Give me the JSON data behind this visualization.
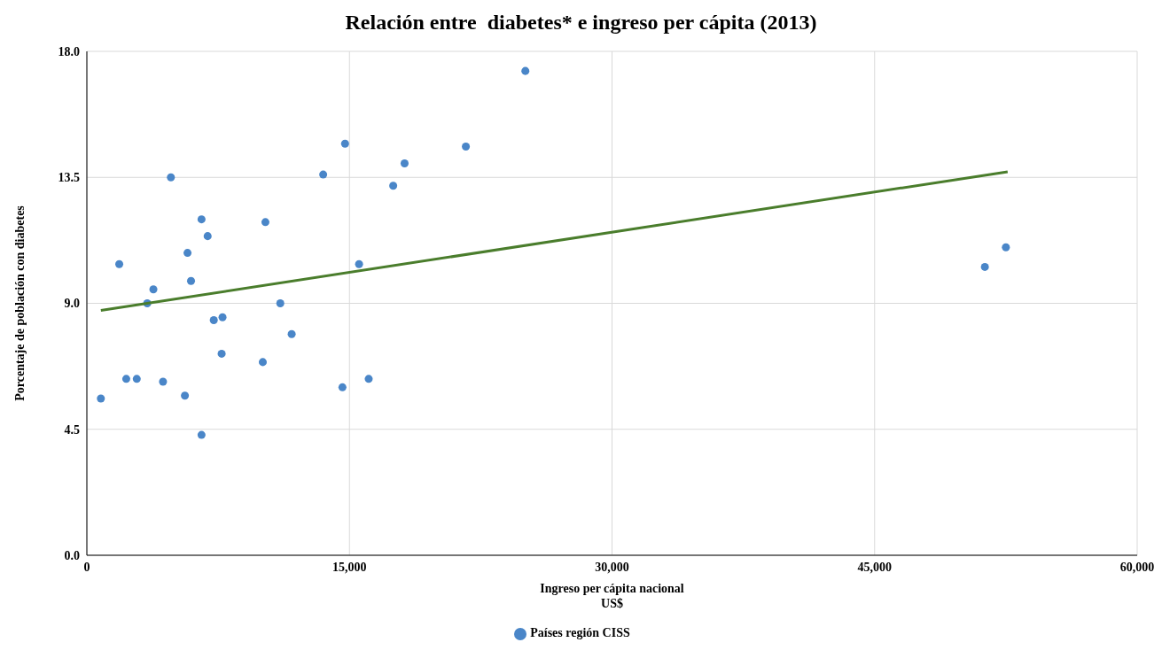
{
  "chart_data": {
    "type": "scatter",
    "title": "Relación entre  diabetes* e ingreso per cápita (2013)",
    "xlabel": "Ingreso per cápita nacional\nUS$",
    "ylabel": "Porcentaje de población con diabetes",
    "xlim": [
      0,
      60000
    ],
    "xticks": [
      {
        "value": 0,
        "label": "0"
      },
      {
        "value": 15000,
        "label": "15,000"
      },
      {
        "value": 30000,
        "label": "30,000"
      },
      {
        "value": 45000,
        "label": "45,000"
      },
      {
        "value": 60000,
        "label": "60,000"
      }
    ],
    "ylim": [
      0,
      18
    ],
    "yticks": [
      {
        "value": 0,
        "label": "0.0"
      },
      {
        "value": 4.5,
        "label": "4.5"
      },
      {
        "value": 9,
        "label": "9.0"
      },
      {
        "value": 13.5,
        "label": "13.5"
      },
      {
        "value": 18,
        "label": "18.0"
      }
    ],
    "grid": true,
    "legend": "bottom",
    "series": [
      {
        "name": "Países región CISS",
        "marker": "circle",
        "color": "#4a86c8",
        "x": [
          800,
          1850,
          2250,
          2850,
          3450,
          3800,
          4350,
          4800,
          5600,
          5750,
          5950,
          6550,
          6550,
          6900,
          7250,
          7750,
          7700,
          10050,
          10200,
          11050,
          11700,
          13500,
          14600,
          14750,
          15550,
          16100,
          17500,
          18150,
          21650,
          25050,
          51300,
          52500
        ],
        "values": [
          5.6,
          10.4,
          6.3,
          6.3,
          9.0,
          9.5,
          6.2,
          13.5,
          5.7,
          10.8,
          9.8,
          12.0,
          4.3,
          11.4,
          8.4,
          8.5,
          7.2,
          6.9,
          11.9,
          9.0,
          7.9,
          13.6,
          6.0,
          14.7,
          10.4,
          6.3,
          13.2,
          14.0,
          14.6,
          17.3,
          10.3,
          11.0
        ]
      },
      {
        "type": "line",
        "marker": "none",
        "color": "#4a7d2c",
        "x": [
          800,
          52600
        ],
        "values": [
          8.75,
          13.7
        ]
      }
    ]
  }
}
